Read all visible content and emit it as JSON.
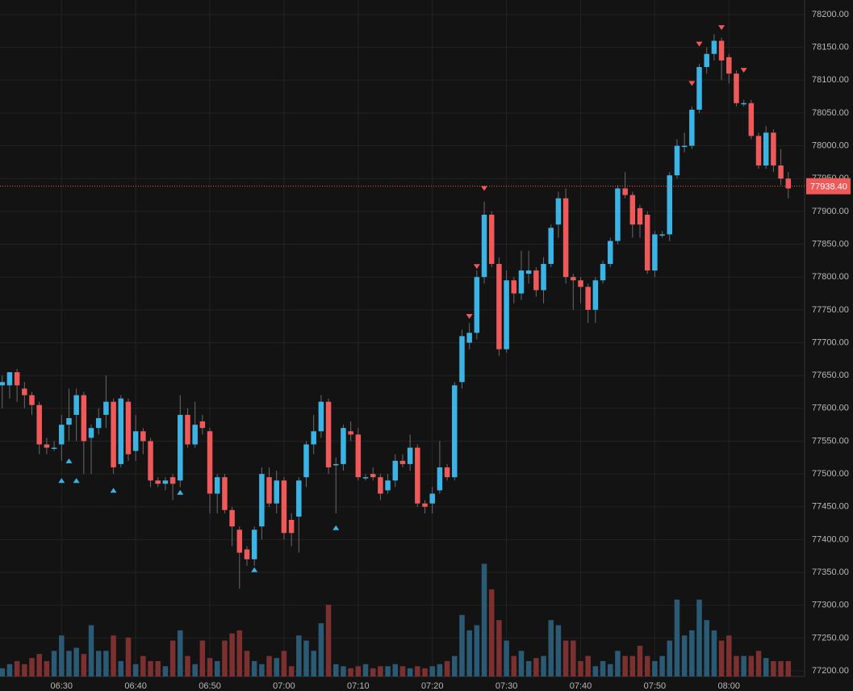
{
  "chart_data": {
    "type": "candlestick",
    "up_color": "#3bb3e4",
    "down_color": "#f0595a",
    "volume_up_color": "#2b5a74",
    "volume_down_color": "#7c3030",
    "grid": true,
    "ylim": [
      77200,
      78200
    ],
    "yticks": [
      {
        "value": 77200,
        "label": "77200.00"
      },
      {
        "value": 77250,
        "label": "77250.00"
      },
      {
        "value": 77300,
        "label": "77300.00"
      },
      {
        "value": 77350,
        "label": "77350.00"
      },
      {
        "value": 77400,
        "label": "77400.00"
      },
      {
        "value": 77450,
        "label": "77450.00"
      },
      {
        "value": 77500,
        "label": "77500.00"
      },
      {
        "value": 77550,
        "label": "77550.00"
      },
      {
        "value": 77600,
        "label": "77600.00"
      },
      {
        "value": 77650,
        "label": "77650.00"
      },
      {
        "value": 77700,
        "label": "77700.00"
      },
      {
        "value": 77750,
        "label": "77750.00"
      },
      {
        "value": 77800,
        "label": "77800.00"
      },
      {
        "value": 77850,
        "label": "77850.00"
      },
      {
        "value": 77900,
        "label": "77900.00"
      },
      {
        "value": 77950,
        "label": "77950.00"
      },
      {
        "value": 78000,
        "label": "78000.00"
      },
      {
        "value": 78050,
        "label": "78050.00"
      },
      {
        "value": 78100,
        "label": "78100.00"
      },
      {
        "value": 78150,
        "label": "78150.00"
      },
      {
        "value": 78200,
        "label": "78200.00"
      }
    ],
    "xlim": [
      381.7,
      490.2
    ],
    "xticks": [
      {
        "value": 390,
        "label": "06:30"
      },
      {
        "value": 400,
        "label": "06:40"
      },
      {
        "value": 410,
        "label": "06:50"
      },
      {
        "value": 420,
        "label": "07:00"
      },
      {
        "value": 430,
        "label": "07:10"
      },
      {
        "value": 440,
        "label": "07:20"
      },
      {
        "value": 450,
        "label": "07:30"
      },
      {
        "value": 460,
        "label": "07:40"
      },
      {
        "value": 470,
        "label": "07:50"
      },
      {
        "value": 480,
        "label": "08:00"
      }
    ],
    "volume_lim": [
      0,
      660
    ],
    "last_price": {
      "value": 77938.4,
      "label": "77938.40"
    },
    "x": [
      382,
      383,
      384,
      385,
      386,
      387,
      388,
      389,
      390,
      391,
      392,
      393,
      394,
      395,
      396,
      397,
      398,
      399,
      400,
      401,
      402,
      403,
      404,
      405,
      406,
      407,
      408,
      409,
      410,
      411,
      412,
      413,
      414,
      415,
      416,
      417,
      418,
      419,
      420,
      421,
      422,
      423,
      424,
      425,
      426,
      427,
      428,
      429,
      430,
      431,
      432,
      433,
      434,
      435,
      436,
      437,
      438,
      439,
      440,
      441,
      442,
      443,
      444,
      445,
      446,
      447,
      448,
      449,
      450,
      451,
      452,
      453,
      454,
      455,
      456,
      457,
      458,
      459,
      460,
      461,
      462,
      463,
      464,
      465,
      466,
      467,
      468,
      469,
      470,
      471,
      472,
      473,
      474,
      475,
      476,
      477,
      478,
      479,
      480,
      481,
      482,
      483,
      484,
      485,
      486,
      487,
      488
    ],
    "open": [
      77635,
      77635,
      77655,
      77630,
      77620,
      77605,
      77545,
      77540,
      77545,
      77575,
      77590,
      77620,
      77555,
      77570,
      77590,
      77610,
      77515,
      77610,
      77535,
      77565,
      77550,
      77490,
      77485,
      77495,
      77490,
      77590,
      77545,
      77580,
      77565,
      77470,
      77495,
      77445,
      77415,
      77385,
      77370,
      77420,
      77495,
      77455,
      77490,
      77430,
      77435,
      77495,
      77545,
      77565,
      77610,
      77515,
      77515,
      77565,
      77560,
      77495,
      77500,
      77495,
      77475,
      77490,
      77520,
      77515,
      77540,
      77455,
      77455,
      77475,
      77510,
      77495,
      77640,
      77700,
      77715,
      77800,
      77895,
      77820,
      77690,
      77795,
      77775,
      77805,
      77810,
      77780,
      77820,
      77880,
      77920,
      77800,
      77795,
      77785,
      77750,
      77795,
      77820,
      77855,
      77935,
      77925,
      77905,
      77895,
      77810,
      77865,
      77865,
      77955,
      78000,
      78000,
      78055,
      78120,
      78140,
      78160,
      78135,
      78110,
      78065,
      78065,
      78015,
      77970,
      78020,
      77970,
      77950
    ],
    "high": [
      77650,
      77655,
      77660,
      77640,
      77625,
      77610,
      77555,
      77550,
      77590,
      77630,
      77630,
      77625,
      77575,
      77600,
      77650,
      77615,
      77620,
      77615,
      77590,
      77570,
      77555,
      77495,
      77495,
      77500,
      77620,
      77600,
      77610,
      77590,
      77570,
      77500,
      77500,
      77450,
      77420,
      77390,
      77420,
      77510,
      77510,
      77505,
      77495,
      77440,
      77495,
      77550,
      77590,
      77620,
      77615,
      77525,
      77575,
      77580,
      77570,
      77500,
      77510,
      77500,
      77500,
      77530,
      77530,
      77560,
      77545,
      77460,
      77480,
      77550,
      77515,
      77640,
      77720,
      77730,
      77810,
      77915,
      77900,
      77830,
      77810,
      77800,
      77840,
      77840,
      77815,
      77830,
      77880,
      77930,
      77935,
      77805,
      77800,
      77790,
      77800,
      77825,
      77860,
      77940,
      77960,
      77930,
      77910,
      77900,
      77870,
      77870,
      77960,
      78010,
      78020,
      78060,
      78125,
      78150,
      78170,
      78165,
      78140,
      78115,
      78070,
      78070,
      78020,
      78030,
      78025,
      77995,
      77960
    ],
    "low": [
      77600,
      77615,
      77610,
      77600,
      77590,
      77530,
      77530,
      77535,
      77520,
      77550,
      77550,
      77500,
      77500,
      77560,
      77570,
      77500,
      77510,
      77520,
      77520,
      77530,
      77480,
      77480,
      77475,
      77460,
      77480,
      77540,
      77540,
      77560,
      77440,
      77440,
      77440,
      77390,
      77325,
      77360,
      77360,
      77400,
      77450,
      77440,
      77400,
      77390,
      77380,
      77480,
      77530,
      77555,
      77500,
      77440,
      77505,
      77550,
      77490,
      77490,
      77490,
      77460,
      77470,
      77480,
      77510,
      77505,
      77450,
      77440,
      77440,
      77470,
      77490,
      77490,
      77630,
      77690,
      77705,
      77790,
      77815,
      77680,
      77685,
      77760,
      77765,
      77790,
      77770,
      77760,
      77815,
      77860,
      77790,
      77750,
      77760,
      77730,
      77730,
      77790,
      77815,
      77850,
      77920,
      77860,
      77860,
      77805,
      77800,
      77860,
      77855,
      77950,
      77990,
      77995,
      78050,
      78110,
      78130,
      78100,
      78095,
      78060,
      78060,
      78010,
      77965,
      77965,
      77960,
      77940,
      77920
    ],
    "close": [
      77640,
      77655,
      77635,
      77620,
      77605,
      77545,
      77540,
      77540,
      77575,
      77585,
      77620,
      77550,
      77570,
      77585,
      77610,
      77510,
      77615,
      77530,
      77565,
      77550,
      77490,
      77485,
      77490,
      77485,
      77590,
      77545,
      77575,
      77570,
      77470,
      77495,
      77445,
      77420,
      77380,
      77370,
      77415,
      77500,
      77455,
      77490,
      77410,
      77410,
      77490,
      77545,
      77565,
      77610,
      77510,
      77515,
      77570,
      77560,
      77495,
      77495,
      77495,
      77470,
      77490,
      77520,
      77515,
      77540,
      77455,
      77450,
      77470,
      77510,
      77495,
      77635,
      77710,
      77715,
      77800,
      77895,
      77820,
      77690,
      77795,
      77775,
      77810,
      77810,
      77780,
      77820,
      77875,
      77920,
      77800,
      77795,
      77785,
      77750,
      77795,
      77820,
      77855,
      77935,
      77925,
      77880,
      77880,
      77810,
      77865,
      77865,
      77955,
      78000,
      78000,
      78055,
      78120,
      78140,
      78160,
      78130,
      78110,
      78065,
      78065,
      78015,
      77970,
      78020,
      77970,
      77950,
      77935
    ],
    "volume": [
      8,
      12,
      15,
      12,
      18,
      22,
      15,
      25,
      40,
      25,
      28,
      22,
      50,
      25,
      25,
      40,
      15,
      38,
      12,
      20,
      15,
      15,
      10,
      35,
      45,
      20,
      12,
      35,
      18,
      15,
      35,
      42,
      45,
      25,
      15,
      12,
      20,
      18,
      25,
      10,
      40,
      35,
      25,
      52,
      70,
      12,
      10,
      8,
      10,
      12,
      8,
      10,
      10,
      12,
      10,
      8,
      10,
      8,
      10,
      12,
      15,
      20,
      60,
      45,
      50,
      110,
      85,
      55,
      35,
      20,
      25,
      15,
      18,
      20,
      55,
      50,
      35,
      35,
      15,
      20,
      10,
      15,
      12,
      25,
      20,
      20,
      30,
      20,
      15,
      20,
      35,
      75,
      40,
      45,
      75,
      55,
      45,
      35,
      40,
      20,
      20,
      20,
      25,
      18,
      15,
      15,
      15
    ],
    "signals_up": {
      "x": [
        390,
        391,
        392,
        397,
        406,
        416,
        427
      ],
      "y": [
        77490,
        77520,
        77490,
        77475,
        77472,
        77354,
        77418
      ]
    },
    "signals_down": {
      "x": [
        445,
        446,
        447,
        475,
        476,
        479,
        482
      ],
      "y": [
        77740,
        77816,
        77935,
        78095,
        78155,
        78180,
        78115
      ]
    }
  }
}
